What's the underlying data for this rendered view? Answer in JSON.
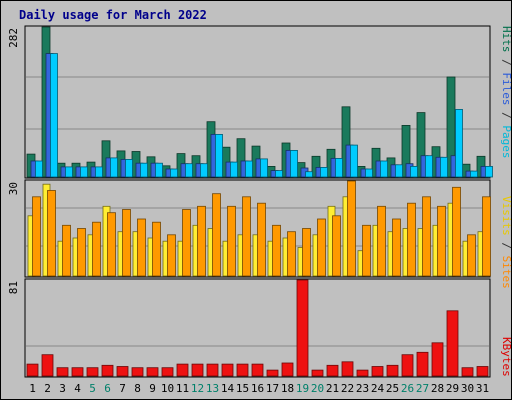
{
  "chart_data": {
    "title": "Daily usage for March 2022",
    "days": [
      1,
      2,
      3,
      4,
      5,
      6,
      7,
      8,
      9,
      10,
      11,
      12,
      13,
      14,
      15,
      16,
      17,
      18,
      19,
      20,
      21,
      22,
      23,
      24,
      25,
      26,
      27,
      28,
      29,
      30,
      31
    ],
    "weekend_days": [
      5,
      6,
      12,
      13,
      19,
      20,
      26,
      27
    ],
    "panels": [
      {
        "type": "bar",
        "ylabel": "282",
        "ymax": 282,
        "axis_labels": [
          {
            "text": "Hits",
            "color": "#006f4a"
          },
          {
            "text": " / ",
            "color": "#333333"
          },
          {
            "text": "Files",
            "color": "#2b5bd8"
          },
          {
            "text": " / ",
            "color": "#333333"
          },
          {
            "text": "Pages",
            "color": "#00b8d8"
          }
        ],
        "series": [
          {
            "name": "Hits",
            "color": "#1a7a5c",
            "values": [
              43,
              282,
              26,
              26,
              28,
              68,
              49,
              48,
              38,
              21,
              44,
              40,
              104,
              56,
              72,
              58,
              20,
              64,
              27,
              39,
              52,
              132,
              20,
              54,
              36,
              97,
              121,
              57,
              188,
              24,
              39
            ]
          },
          {
            "name": "Files",
            "color": "#3366dd",
            "values": [
              30,
              232,
              19,
              19,
              19,
              36,
              33,
              26,
              26,
              15,
              25,
              25,
              80,
              28,
              30,
              34,
              12,
              50,
              17,
              18,
              35,
              60,
              15,
              30,
              23,
              25,
              40,
              37,
              40,
              11,
              20
            ]
          },
          {
            "name": "Pages",
            "color": "#00ccff",
            "values": [
              30,
              232,
              19,
              19,
              19,
              36,
              33,
              26,
              26,
              15,
              25,
              25,
              80,
              28,
              30,
              34,
              12,
              50,
              10,
              18,
              35,
              60,
              15,
              30,
              23,
              20,
              40,
              37,
              127,
              11,
              20
            ]
          }
        ]
      },
      {
        "type": "bar",
        "ylabel": "30",
        "ymax": 30,
        "axis_labels": [
          {
            "text": "Visits",
            "color": "#e8c800"
          },
          {
            "text": " / ",
            "color": "#333333"
          },
          {
            "text": "Sites",
            "color": "#ff8800"
          }
        ],
        "series": [
          {
            "name": "Visits",
            "color": "#ffee33",
            "values": [
              19,
              29,
              11,
              12,
              13,
              22,
              14,
              14,
              12,
              11,
              11,
              16,
              15,
              11,
              13,
              13,
              11,
              12,
              9,
              13,
              22,
              25,
              8,
              16,
              14,
              15,
              15,
              16,
              23,
              11,
              14
            ]
          },
          {
            "name": "Sites",
            "color": "#ff9900",
            "values": [
              25,
              27,
              16,
              15,
              17,
              20,
              21,
              18,
              17,
              13,
              21,
              22,
              26,
              22,
              25,
              23,
              16,
              14,
              15,
              18,
              19,
              30,
              16,
              22,
              18,
              23,
              25,
              22,
              28,
              13,
              25
            ]
          }
        ]
      },
      {
        "type": "bar",
        "ylabel": "81",
        "ymax": 81,
        "axis_labels": [
          {
            "text": "KBytes",
            "color": "#dd0000"
          }
        ],
        "series": [
          {
            "name": "KBytes",
            "color": "#ee1111",
            "values": [
              10,
              18,
              7,
              7,
              7,
              9,
              8,
              7,
              7,
              7,
              10,
              10,
              10,
              10,
              10,
              10,
              5,
              11,
              81,
              5,
              9,
              12,
              5,
              8,
              9,
              18,
              20,
              28,
              55,
              7,
              8
            ]
          }
        ]
      }
    ]
  }
}
